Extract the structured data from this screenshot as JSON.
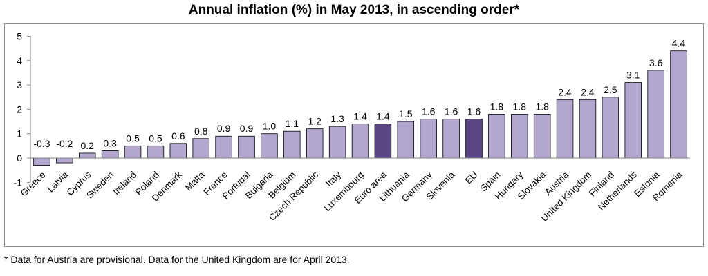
{
  "title": "Annual inflation (%) in May 2013, in ascending order*",
  "footnote": "* Data for Austria are provisional. Data for the United Kingdom are for April 2013.",
  "colors": {
    "bar": "#b3a7cf",
    "highlight": "#5a4684",
    "stroke": "#000000",
    "axis": "#808080"
  },
  "chart_data": {
    "type": "bar",
    "categories": [
      "Greece",
      "Latvia",
      "Cyprus",
      "Sweden",
      "Ireland",
      "Poland",
      "Denmark",
      "Malta",
      "France",
      "Portugal",
      "Bulgaria",
      "Belgium",
      "Czech Republic",
      "Italy",
      "Luxembourg",
      "Euro area",
      "Lithuania",
      "Germany",
      "Slovenia",
      "EU",
      "Spain",
      "Hungary",
      "Slovakia",
      "Austria",
      "United Kingdom",
      "Finland",
      "Netherlands",
      "Estonia",
      "Romania"
    ],
    "values": [
      -0.3,
      -0.2,
      0.2,
      0.3,
      0.5,
      0.5,
      0.6,
      0.8,
      0.9,
      0.9,
      1.0,
      1.1,
      1.2,
      1.3,
      1.4,
      1.4,
      1.5,
      1.6,
      1.6,
      1.6,
      1.8,
      1.8,
      1.8,
      2.4,
      2.4,
      2.5,
      3.1,
      3.6,
      4.4
    ],
    "value_labels": [
      "-0.3",
      "-0.2",
      "0.2",
      "0.3",
      "0.5",
      "0.5",
      "0.6",
      "0.8",
      "0.9",
      "0.9",
      "1.0",
      "1.1",
      "1.2",
      "1.3",
      "1.4",
      "1.4",
      "1.5",
      "1.6",
      "1.6",
      "1.6",
      "1.8",
      "1.8",
      "1.8",
      "2.4",
      "2.4",
      "2.5",
      "3.1",
      "3.6",
      "4.4"
    ],
    "highlighted": [
      "Euro area",
      "EU"
    ],
    "yticks": [
      "-1",
      "0",
      "1",
      "2",
      "3",
      "4",
      "5"
    ],
    "ylim": [
      -1,
      5
    ],
    "grid": false,
    "legend": "none",
    "xlabel": "",
    "ylabel": ""
  }
}
